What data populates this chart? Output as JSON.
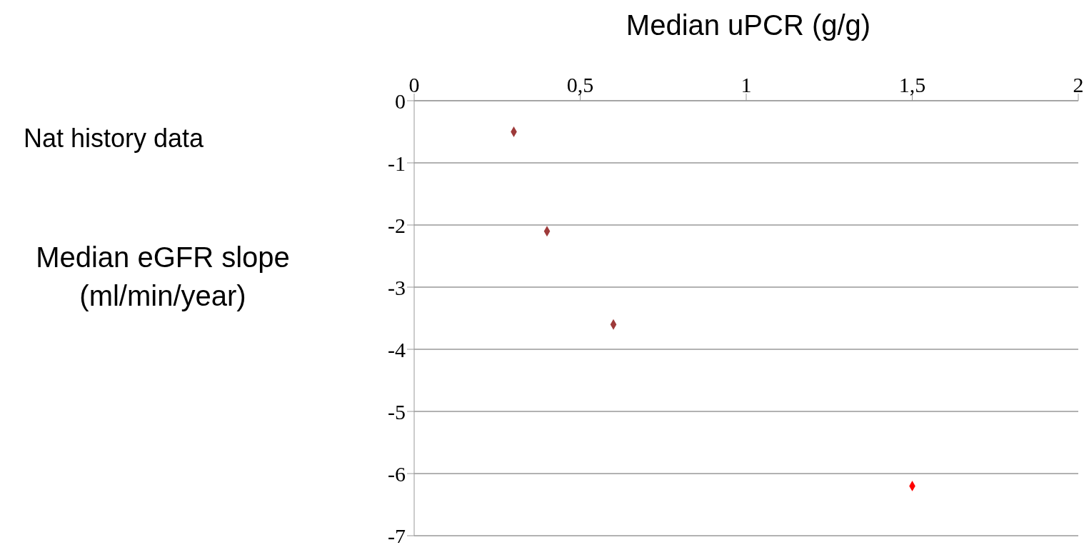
{
  "chart_data": {
    "type": "scatter",
    "xlabel": "Median uPCR (g/g)",
    "ylabel": "Median eGFR slope\n(ml/min/year)",
    "annotations": [
      "Nat history data"
    ],
    "x": [
      0.3,
      0.4,
      0.6,
      1.5
    ],
    "values": [
      -0.5,
      -2.1,
      -3.6,
      -6.2
    ],
    "colors": [
      "#9e3a3a",
      "#9e3a3a",
      "#9e3a3a",
      "#ff0000"
    ],
    "xlim": [
      0,
      2
    ],
    "xticks": [
      0,
      {
        "value": 0.5,
        "label": "0,5"
      },
      1,
      {
        "value": 1.5,
        "label": "1,5"
      },
      2
    ],
    "ylim": [
      -7,
      0
    ],
    "yticks": [
      0,
      -1,
      -2,
      -3,
      -4,
      -5,
      -6,
      -7
    ],
    "grid": "y",
    "marker": "diamond"
  }
}
